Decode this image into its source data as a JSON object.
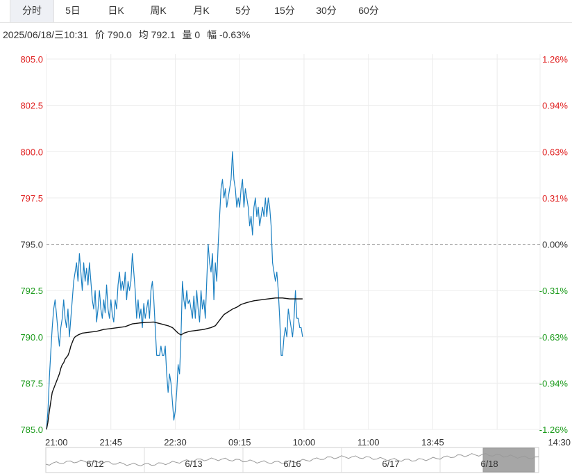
{
  "tabs": [
    {
      "label": "分时",
      "active": true
    },
    {
      "label": "5日",
      "active": false
    },
    {
      "label": "日K",
      "active": false
    },
    {
      "label": "周K",
      "active": false
    },
    {
      "label": "月K",
      "active": false
    },
    {
      "label": "5分",
      "active": false
    },
    {
      "label": "15分",
      "active": false
    },
    {
      "label": "30分",
      "active": false
    },
    {
      "label": "60分",
      "active": false
    }
  ],
  "info": {
    "datetime": "2025/06/18/三10:31",
    "price": "价 790.0",
    "avg": "均 792.1",
    "volume": "量 0",
    "change": "幅 -0.63%"
  },
  "colors": {
    "up": "#e02020",
    "down": "#1a9a1a",
    "neutral": "#333333",
    "price_line": "#1a7fc1",
    "avg_line": "#111111",
    "grid": "#ececec",
    "ref_line": "#999999"
  },
  "chart_data": {
    "type": "line",
    "title": "",
    "xlabel": "",
    "ylabel": "",
    "reference_price": 795.0,
    "ylim": [
      785.0,
      805.0
    ],
    "y_ticks": [
      {
        "value": 805.0,
        "label": "805.0",
        "pct": "1.26%"
      },
      {
        "value": 802.5,
        "label": "802.5",
        "pct": "0.94%"
      },
      {
        "value": 800.0,
        "label": "800.0",
        "pct": "0.63%"
      },
      {
        "value": 797.5,
        "label": "797.5",
        "pct": "0.31%"
      },
      {
        "value": 795.0,
        "label": "795.0",
        "pct": "0.00%"
      },
      {
        "value": 792.5,
        "label": "792.5",
        "pct": "-0.31%"
      },
      {
        "value": 790.0,
        "label": "790.0",
        "pct": "-0.63%"
      },
      {
        "value": 787.5,
        "label": "787.5",
        "pct": "-0.94%"
      },
      {
        "value": 785.0,
        "label": "785.0",
        "pct": "-1.26%"
      }
    ],
    "total_minutes": 345,
    "x_ticks": [
      {
        "minute": 0,
        "label": "21:00"
      },
      {
        "minute": 45,
        "label": "21:45"
      },
      {
        "minute": 90,
        "label": "22:30"
      },
      {
        "minute": 135,
        "label": "09:15"
      },
      {
        "minute": 180,
        "label": "10:00"
      },
      {
        "minute": 225,
        "label": "11:00"
      },
      {
        "minute": 270,
        "label": "13:45"
      },
      {
        "minute": 315,
        "label": "14:30"
      }
    ],
    "grid": true,
    "series": [
      {
        "key": "price",
        "points": [
          [
            0,
            785.0
          ],
          [
            1,
            786.0
          ],
          [
            2,
            787.8
          ],
          [
            3,
            789.2
          ],
          [
            4,
            790.5
          ],
          [
            5,
            791.5
          ],
          [
            6,
            792.0
          ],
          [
            7,
            791.2
          ],
          [
            8,
            790.3
          ],
          [
            9,
            789.5
          ],
          [
            10,
            790.5
          ],
          [
            11,
            791.0
          ],
          [
            12,
            792.0
          ],
          [
            13,
            791.0
          ],
          [
            14,
            790.5
          ],
          [
            15,
            791.5
          ],
          [
            16,
            790.0
          ],
          [
            17,
            791.0
          ],
          [
            18,
            792.0
          ],
          [
            19,
            793.0
          ],
          [
            20,
            793.5
          ],
          [
            21,
            794.0
          ],
          [
            22,
            793.0
          ],
          [
            23,
            794.5
          ],
          [
            24,
            793.5
          ],
          [
            25,
            792.5
          ],
          [
            26,
            794.0
          ],
          [
            27,
            793.0
          ],
          [
            28,
            793.7
          ],
          [
            29,
            792.8
          ],
          [
            30,
            794.0
          ],
          [
            31,
            793.0
          ],
          [
            32,
            792.0
          ],
          [
            33,
            791.5
          ],
          [
            34,
            792.5
          ],
          [
            35,
            790.8
          ],
          [
            36,
            791.5
          ],
          [
            37,
            792.5
          ],
          [
            38,
            791.5
          ],
          [
            39,
            791.0
          ],
          [
            40,
            792.0
          ],
          [
            41,
            791.3
          ],
          [
            42,
            792.8
          ],
          [
            43,
            791.5
          ],
          [
            44,
            791.0
          ],
          [
            45,
            792.0
          ],
          [
            46,
            791.2
          ],
          [
            47,
            790.8
          ],
          [
            48,
            792.0
          ],
          [
            49,
            791.5
          ],
          [
            50,
            792.8
          ],
          [
            51,
            793.5
          ],
          [
            52,
            792.5
          ],
          [
            53,
            793.0
          ],
          [
            54,
            792.5
          ],
          [
            55,
            793.5
          ],
          [
            56,
            792.0
          ],
          [
            57,
            793.0
          ],
          [
            58,
            792.5
          ],
          [
            59,
            793.0
          ],
          [
            60,
            794.5
          ],
          [
            61,
            793.5
          ],
          [
            62,
            792.5
          ],
          [
            63,
            791.0
          ],
          [
            64,
            792.0
          ],
          [
            65,
            791.0
          ],
          [
            66,
            791.5
          ],
          [
            67,
            790.5
          ],
          [
            68,
            791.8
          ],
          [
            69,
            791.0
          ],
          [
            70,
            791.5
          ],
          [
            71,
            792.0
          ],
          [
            72,
            791.0
          ],
          [
            73,
            792.5
          ],
          [
            74,
            793.0
          ],
          [
            75,
            792.0
          ],
          [
            76,
            790.5
          ],
          [
            77,
            789.0
          ],
          [
            78,
            789.0
          ],
          [
            79,
            789.0
          ],
          [
            80,
            789.5
          ],
          [
            81,
            789.0
          ],
          [
            82,
            789.0
          ],
          [
            83,
            789.5
          ],
          [
            84,
            788.0
          ],
          [
            85,
            787.0
          ],
          [
            86,
            788.0
          ],
          [
            87,
            787.5
          ],
          [
            88,
            786.5
          ],
          [
            89,
            785.5
          ],
          [
            90,
            786.0
          ],
          [
            91,
            787.0
          ],
          [
            92,
            788.5
          ],
          [
            93,
            788.0
          ],
          [
            94,
            790.0
          ],
          [
            95,
            793.0
          ],
          [
            96,
            792.0
          ],
          [
            97,
            791.5
          ],
          [
            98,
            792.5
          ],
          [
            99,
            791.8
          ],
          [
            100,
            792.0
          ],
          [
            101,
            791.5
          ],
          [
            102,
            791.0
          ],
          [
            103,
            792.2
          ],
          [
            104,
            791.0
          ],
          [
            105,
            792.5
          ],
          [
            106,
            791.5
          ],
          [
            107,
            790.8
          ],
          [
            108,
            792.5
          ],
          [
            109,
            791.5
          ],
          [
            110,
            792.0
          ],
          [
            111,
            791.0
          ],
          [
            112,
            793.0
          ],
          [
            113,
            795.0
          ],
          [
            114,
            794.0
          ],
          [
            115,
            793.5
          ],
          [
            116,
            794.5
          ],
          [
            117,
            792.0
          ],
          [
            118,
            794.0
          ],
          [
            119,
            793.0
          ],
          [
            120,
            795.0
          ],
          [
            121,
            796.5
          ],
          [
            122,
            798.0
          ],
          [
            123,
            798.5
          ],
          [
            124,
            797.5
          ],
          [
            125,
            798.0
          ],
          [
            126,
            797.0
          ],
          [
            127,
            797.5
          ],
          [
            128,
            798.0
          ],
          [
            129,
            798.5
          ],
          [
            130,
            800.0
          ],
          [
            131,
            798.5
          ],
          [
            132,
            798.0
          ],
          [
            133,
            797.0
          ],
          [
            134,
            797.5
          ],
          [
            135,
            797.0
          ],
          [
            136,
            798.0
          ],
          [
            137,
            798.5
          ],
          [
            138,
            797.0
          ],
          [
            139,
            798.0
          ],
          [
            140,
            797.5
          ],
          [
            141,
            797.0
          ],
          [
            142,
            796.0
          ],
          [
            143,
            796.5
          ],
          [
            144,
            795.5
          ],
          [
            145,
            797.0
          ],
          [
            146,
            797.5
          ],
          [
            147,
            796.5
          ],
          [
            148,
            797.0
          ],
          [
            149,
            796.0
          ],
          [
            150,
            796.5
          ],
          [
            151,
            797.0
          ],
          [
            152,
            796.5
          ],
          [
            153,
            797.5
          ],
          [
            154,
            796.5
          ],
          [
            155,
            797.5
          ],
          [
            156,
            797.0
          ],
          [
            157,
            796.0
          ],
          [
            158,
            794.0
          ],
          [
            159,
            793.5
          ],
          [
            160,
            793.0
          ],
          [
            161,
            793.5
          ],
          [
            162,
            792.5
          ],
          [
            163,
            791.0
          ],
          [
            164,
            789.0
          ],
          [
            165,
            789.0
          ],
          [
            166,
            790.0
          ],
          [
            167,
            790.5
          ],
          [
            168,
            790.0
          ],
          [
            169,
            791.5
          ],
          [
            170,
            791.0
          ],
          [
            171,
            790.5
          ],
          [
            172,
            790.0
          ],
          [
            173,
            791.0
          ],
          [
            174,
            792.5
          ],
          [
            175,
            791.0
          ],
          [
            176,
            791.0
          ],
          [
            177,
            790.5
          ],
          [
            178,
            790.5
          ],
          [
            179,
            790.0
          ]
        ]
      },
      {
        "key": "average",
        "points": [
          [
            0,
            785.0
          ],
          [
            1,
            785.4
          ],
          [
            2,
            786.0
          ],
          [
            3,
            786.5
          ],
          [
            4,
            787.0
          ],
          [
            5,
            787.2
          ],
          [
            6,
            787.4
          ],
          [
            7,
            787.6
          ],
          [
            8,
            787.8
          ],
          [
            9,
            788.0
          ],
          [
            10,
            788.3
          ],
          [
            11,
            788.5
          ],
          [
            12,
            788.6
          ],
          [
            13,
            788.8
          ],
          [
            14,
            788.9
          ],
          [
            15,
            789.0
          ],
          [
            16,
            789.2
          ],
          [
            17,
            789.5
          ],
          [
            18,
            789.7
          ],
          [
            19,
            789.9
          ],
          [
            20,
            790.0
          ],
          [
            22,
            790.1
          ],
          [
            25,
            790.2
          ],
          [
            30,
            790.25
          ],
          [
            35,
            790.3
          ],
          [
            40,
            790.4
          ],
          [
            45,
            790.45
          ],
          [
            50,
            790.5
          ],
          [
            55,
            790.55
          ],
          [
            60,
            790.7
          ],
          [
            65,
            790.75
          ],
          [
            70,
            790.78
          ],
          [
            75,
            790.8
          ],
          [
            80,
            790.7
          ],
          [
            85,
            790.6
          ],
          [
            88,
            790.5
          ],
          [
            90,
            790.35
          ],
          [
            92,
            790.2
          ],
          [
            94,
            790.1
          ],
          [
            96,
            790.2
          ],
          [
            100,
            790.3
          ],
          [
            105,
            790.35
          ],
          [
            110,
            790.4
          ],
          [
            115,
            790.5
          ],
          [
            118,
            790.6
          ],
          [
            120,
            790.8
          ],
          [
            122,
            791.0
          ],
          [
            124,
            791.2
          ],
          [
            127,
            791.35
          ],
          [
            130,
            791.5
          ],
          [
            133,
            791.6
          ],
          [
            136,
            791.75
          ],
          [
            140,
            791.85
          ],
          [
            145,
            791.95
          ],
          [
            150,
            792.0
          ],
          [
            155,
            792.05
          ],
          [
            160,
            792.1
          ],
          [
            165,
            792.1
          ],
          [
            170,
            792.05
          ],
          [
            175,
            792.05
          ],
          [
            179,
            792.05
          ]
        ]
      }
    ]
  },
  "navigator": {
    "labels": [
      {
        "label": "6/12",
        "fraction": 0.1
      },
      {
        "label": "6/13",
        "fraction": 0.3
      },
      {
        "label": "6/16",
        "fraction": 0.5
      },
      {
        "label": "6/17",
        "fraction": 0.7
      },
      {
        "label": "6/18",
        "fraction": 0.9
      }
    ],
    "selected_range": [
      0.8,
      1.0
    ]
  }
}
